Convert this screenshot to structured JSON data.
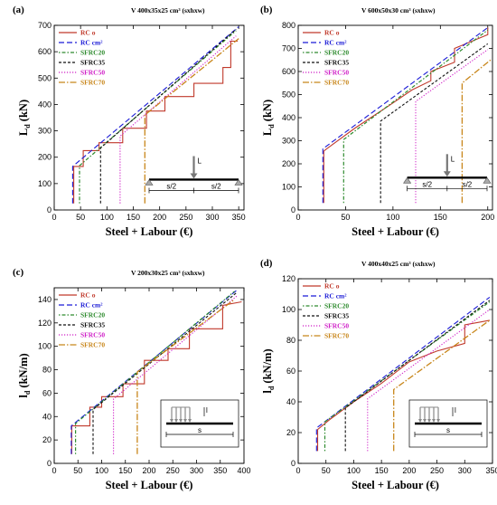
{
  "colors": {
    "rc_o": "#c0392b",
    "rc_cm2": "#1a1ad6",
    "sfrc20": "#2e8b2e",
    "sfrc35": "#111111",
    "sfrc50": "#d020c8",
    "sfrc70": "#c8861a"
  },
  "chart_data": [
    {
      "type": "line",
      "panel_label": "(a)",
      "title": "V 400x35x25 cm³ (sxhxw)",
      "xlabel": "Steel + Labour (€)",
      "ylabel_main": "L",
      "ylabel_sub": "d",
      "ylabel_unit": " (kN)",
      "xlim": [
        0,
        360
      ],
      "ylim": [
        0,
        700
      ],
      "xticks": [
        0,
        50,
        100,
        150,
        200,
        250,
        300,
        350
      ],
      "yticks": [
        0,
        100,
        200,
        300,
        400,
        500,
        600,
        700
      ],
      "schematic": "point",
      "schematic_labels": {
        "load": "L",
        "left": "s/2",
        "right": "s/2"
      },
      "series": [
        {
          "name": "RC o",
          "key": "rc_o",
          "points": [
            [
              37,
              25
            ],
            [
              37,
              165
            ],
            [
              55,
              165
            ],
            [
              55,
              225
            ],
            [
              85,
              225
            ],
            [
              85,
              255
            ],
            [
              130,
              255
            ],
            [
              130,
              310
            ],
            [
              175,
              310
            ],
            [
              175,
              375
            ],
            [
              210,
              375
            ],
            [
              210,
              430
            ],
            [
              265,
              430
            ],
            [
              265,
              480
            ],
            [
              320,
              480
            ],
            [
              320,
              540
            ],
            [
              335,
              540
            ],
            [
              335,
              640
            ],
            [
              348,
              640
            ]
          ]
        },
        {
          "name": "RC cm²",
          "key": "rc_cm2",
          "points": [
            [
              35,
              25
            ],
            [
              35,
              165
            ],
            [
              350,
              695
            ]
          ]
        },
        {
          "name": "SFRC20",
          "key": "sfrc20",
          "points": [
            [
              48,
              25
            ],
            [
              48,
              168
            ],
            [
              345,
              680
            ]
          ]
        },
        {
          "name": "SFRC35",
          "key": "sfrc35",
          "points": [
            [
              88,
              25
            ],
            [
              88,
              235
            ],
            [
              345,
              685
            ]
          ]
        },
        {
          "name": "SFRC50",
          "key": "sfrc50",
          "points": [
            [
              125,
              25
            ],
            [
              125,
              280
            ],
            [
              345,
              660
            ]
          ]
        },
        {
          "name": "SFRC70",
          "key": "sfrc70",
          "points": [
            [
              172,
              25
            ],
            [
              172,
              360
            ],
            [
              350,
              650
            ]
          ]
        }
      ]
    },
    {
      "type": "line",
      "panel_label": "(b)",
      "title": "V 600x50x30 cm³ (sxhxw)",
      "xlabel": "Steel + Labour (€)",
      "ylabel_main": "L",
      "ylabel_sub": "d",
      "ylabel_unit": " (kN)",
      "xlim": [
        0,
        205
      ],
      "ylim": [
        0,
        800
      ],
      "xticks": [
        0,
        50,
        100,
        150,
        200
      ],
      "yticks": [
        0,
        100,
        200,
        300,
        400,
        500,
        600,
        700,
        800
      ],
      "schematic": "point",
      "schematic_labels": {
        "load": "L",
        "left": "s/2",
        "right": "s/2"
      },
      "series": [
        {
          "name": "RC o",
          "key": "rc_o",
          "points": [
            [
              27,
              30
            ],
            [
              27,
              255
            ],
            [
              30,
              265
            ],
            [
              60,
              355
            ],
            [
              95,
              450
            ],
            [
              120,
              520
            ],
            [
              140,
              560
            ],
            [
              140,
              600
            ],
            [
              165,
              640
            ],
            [
              165,
              700
            ],
            [
              200,
              760
            ],
            [
              200,
              790
            ]
          ]
        },
        {
          "name": "RC cm²",
          "key": "rc_cm2",
          "points": [
            [
              26,
              30
            ],
            [
              26,
              265
            ],
            [
              200,
              790
            ]
          ]
        },
        {
          "name": "SFRC20",
          "key": "sfrc20",
          "points": [
            [
              48,
              30
            ],
            [
              48,
              305
            ],
            [
              200,
              780
            ]
          ]
        },
        {
          "name": "SFRC35",
          "key": "sfrc35",
          "points": [
            [
              87,
              30
            ],
            [
              87,
              385
            ],
            [
              200,
              720
            ]
          ]
        },
        {
          "name": "SFRC50",
          "key": "sfrc50",
          "points": [
            [
              124,
              30
            ],
            [
              124,
              470
            ],
            [
              200,
              695
            ]
          ]
        },
        {
          "name": "SFRC70",
          "key": "sfrc70",
          "points": [
            [
              173,
              30
            ],
            [
              173,
              550
            ],
            [
              203,
              650
            ]
          ]
        }
      ]
    },
    {
      "type": "line",
      "panel_label": "(c)",
      "title": "V 200x30x25 cm³ (sxhxw)",
      "xlabel": "Steel + Labour (€)",
      "ylabel_main": "l",
      "ylabel_sub": "d",
      "ylabel_unit": " (kN/m)",
      "xlim": [
        0,
        400
      ],
      "ylim": [
        0,
        150
      ],
      "xticks": [
        0,
        50,
        100,
        150,
        200,
        250,
        300,
        350,
        400
      ],
      "yticks": [
        0,
        20,
        40,
        60,
        80,
        100,
        120,
        140
      ],
      "schematic": "distributed",
      "schematic_labels": {
        "load": "l",
        "span": "s"
      },
      "series": [
        {
          "name": "RC o",
          "key": "rc_o",
          "points": [
            [
              37,
              8
            ],
            [
              37,
              32
            ],
            [
              75,
              32
            ],
            [
              75,
              48
            ],
            [
              100,
              48
            ],
            [
              100,
              57
            ],
            [
              145,
              57
            ],
            [
              145,
              68
            ],
            [
              190,
              68
            ],
            [
              190,
              88
            ],
            [
              240,
              88
            ],
            [
              240,
              98
            ],
            [
              285,
              98
            ],
            [
              285,
              115
            ],
            [
              355,
              115
            ],
            [
              355,
              135
            ],
            [
              395,
              138
            ]
          ]
        },
        {
          "name": "RC cm²",
          "key": "rc_cm2",
          "points": [
            [
              36,
              8
            ],
            [
              36,
              32
            ],
            [
              385,
              148
            ]
          ]
        },
        {
          "name": "SFRC20",
          "key": "sfrc20",
          "points": [
            [
              45,
              8
            ],
            [
              45,
              34
            ],
            [
              380,
              147
            ]
          ]
        },
        {
          "name": "SFRC35",
          "key": "sfrc35",
          "points": [
            [
              82,
              8
            ],
            [
              82,
              46
            ],
            [
              385,
              146
            ]
          ]
        },
        {
          "name": "SFRC50",
          "key": "sfrc50",
          "points": [
            [
              125,
              8
            ],
            [
              125,
              55
            ],
            [
              385,
              143
            ]
          ]
        },
        {
          "name": "SFRC70",
          "key": "sfrc70",
          "points": [
            [
              175,
              8
            ],
            [
              175,
              78
            ],
            [
              380,
              140
            ]
          ]
        }
      ]
    },
    {
      "type": "line",
      "panel_label": "(d)",
      "title": "V 400x40x25 cm³ (sxhxw)",
      "xlabel": "Steel + Labour (€)",
      "ylabel_main": "l",
      "ylabel_sub": "d",
      "ylabel_unit": " (kN/m)",
      "xlim": [
        0,
        350
      ],
      "ylim": [
        0,
        120
      ],
      "xticks": [
        0,
        50,
        100,
        150,
        200,
        250,
        300,
        350
      ],
      "yticks": [
        0,
        20,
        40,
        60,
        80,
        100,
        120
      ],
      "schematic": "distributed",
      "schematic_labels": {
        "load": "l",
        "span": "s"
      },
      "series": [
        {
          "name": "RC o",
          "key": "rc_o",
          "points": [
            [
              35,
              8
            ],
            [
              35,
              22
            ],
            [
              55,
              28
            ],
            [
              100,
              40
            ],
            [
              150,
              52
            ],
            [
              200,
              66
            ],
            [
              250,
              73
            ],
            [
              300,
              78
            ],
            [
              300,
              90
            ],
            [
              345,
              93
            ]
          ]
        },
        {
          "name": "RC cm²",
          "key": "rc_cm2",
          "points": [
            [
              33,
              8
            ],
            [
              33,
              23
            ],
            [
              345,
              108
            ]
          ]
        },
        {
          "name": "SFRC20",
          "key": "sfrc20",
          "points": [
            [
              48,
              8
            ],
            [
              48,
              27
            ],
            [
              345,
              105
            ]
          ]
        },
        {
          "name": "SFRC35",
          "key": "sfrc35",
          "points": [
            [
              85,
              8
            ],
            [
              85,
              36
            ],
            [
              345,
              106
            ]
          ]
        },
        {
          "name": "SFRC50",
          "key": "sfrc50",
          "points": [
            [
              125,
              8
            ],
            [
              125,
              42
            ],
            [
              345,
              100
            ]
          ]
        },
        {
          "name": "SFRC70",
          "key": "sfrc70",
          "points": [
            [
              172,
              8
            ],
            [
              172,
              48
            ],
            [
              345,
              93
            ]
          ]
        }
      ]
    }
  ]
}
